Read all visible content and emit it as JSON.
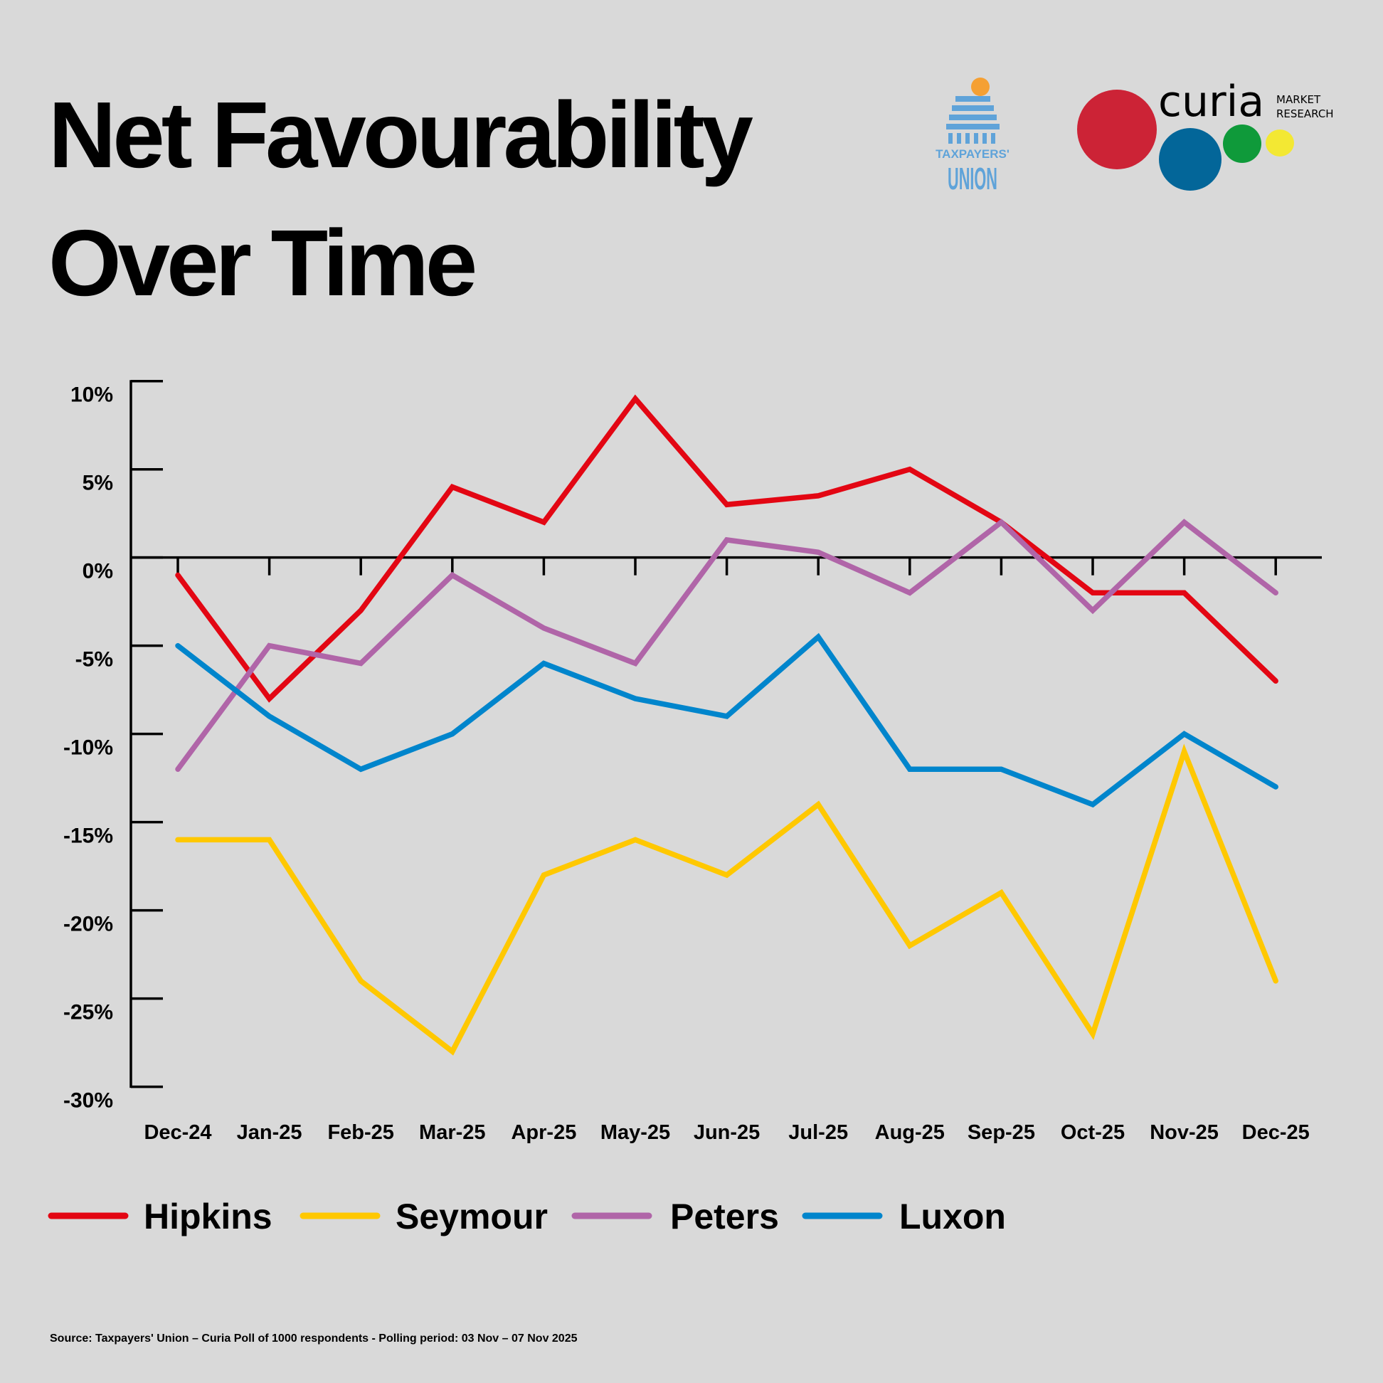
{
  "chart_data": {
    "type": "line",
    "title": "Net Favourability Over Time",
    "title_lines": [
      "Net Favourability",
      "Over Time"
    ],
    "categories": [
      "Dec-24",
      "Jan-25",
      "Feb-25",
      "Mar-25",
      "Apr-25",
      "May-25",
      "Jun-25",
      "Jul-25",
      "Aug-25",
      "Sep-25",
      "Oct-25",
      "Nov-25",
      "Dec-25"
    ],
    "y_ticks": [
      "10%",
      "5%",
      "0%",
      "-5%",
      "-10%",
      "-15%",
      "-20%",
      "-25%",
      "-30%"
    ],
    "y_tick_values": [
      10,
      5,
      0,
      -5,
      -10,
      -15,
      -20,
      -25,
      -30
    ],
    "ylim": [
      -30,
      10
    ],
    "grid": false,
    "legend_position": "bottom",
    "series": [
      {
        "name": "Hipkins",
        "color": "#e30613",
        "values": [
          -1,
          -8,
          -3,
          4,
          2,
          9,
          3,
          3.5,
          5,
          2,
          -2,
          -2,
          -7
        ]
      },
      {
        "name": "Seymour",
        "color": "#ffc800",
        "values": [
          -16,
          -16,
          -24,
          -28,
          -18,
          -16,
          -18,
          -14,
          -22,
          -19,
          -27,
          -11,
          -24
        ]
      },
      {
        "name": "Peters",
        "color": "#b065a8",
        "values": [
          -12,
          -5,
          -6,
          -1,
          -4,
          -6,
          1,
          0.3,
          -2,
          2,
          -3,
          2,
          -2
        ]
      },
      {
        "name": "Luxon",
        "color": "#0085cc",
        "values": [
          -5,
          -9,
          -12,
          -10,
          -6,
          -8,
          -9,
          -4.5,
          -12,
          -12,
          -14,
          -10,
          -13
        ]
      }
    ]
  },
  "logos": {
    "taxpayers_union": {
      "text_top": "TAXPAYERS'",
      "text_bottom": "UNION",
      "color": "#5fa3d9",
      "accent": "#f5a033"
    },
    "curia": {
      "word": "curia",
      "sub1": "MARKET",
      "sub2": "RESEARCH",
      "circle_colors": [
        "#cc2336",
        "#036699",
        "#0f9a3a",
        "#f3e833"
      ]
    }
  },
  "source": "Source: Taxpayers' Union – Curia Poll of 1000 respondents -  Polling period: 03 Nov – 07 Nov 2025"
}
